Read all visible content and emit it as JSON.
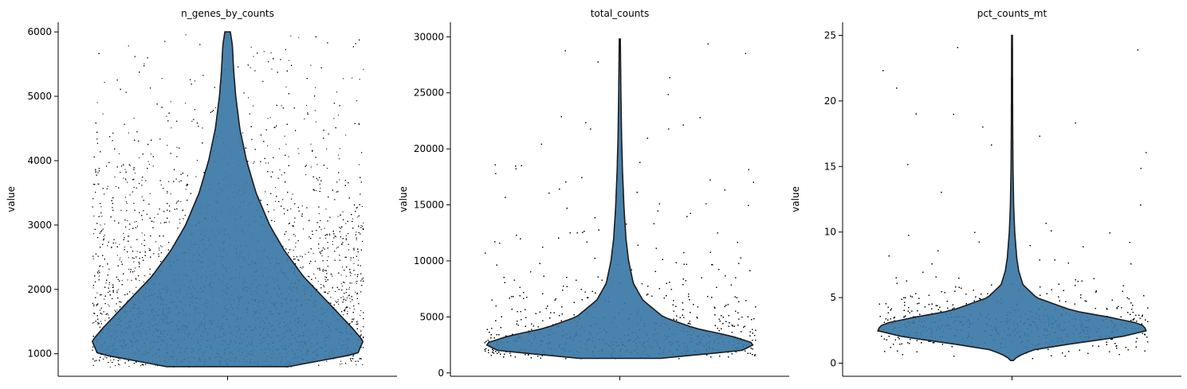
{
  "figure": {
    "background": "#ffffff",
    "violin_color": "#3a77a6",
    "violin_edge": "#1c1c1c",
    "point_color": "#000000",
    "spine_color": "#000000"
  },
  "chart_data": [
    {
      "type": "violin",
      "title": "n_genes_by_counts",
      "xlabel": "",
      "ylabel": "value",
      "ylim": [
        650,
        6150
      ],
      "yticks": [
        1000,
        2000,
        3000,
        4000,
        5000,
        6000
      ],
      "ytick_labels": [
        "1000",
        "2000",
        "3000",
        "4000",
        "5000",
        "6000"
      ],
      "min": 800,
      "max": 6000,
      "density_profile": [
        {
          "y": 800,
          "d": 0.45
        },
        {
          "y": 1000,
          "d": 0.96
        },
        {
          "y": 1200,
          "d": 1.0
        },
        {
          "y": 1400,
          "d": 0.92
        },
        {
          "y": 1800,
          "d": 0.74
        },
        {
          "y": 2200,
          "d": 0.56
        },
        {
          "y": 2600,
          "d": 0.42
        },
        {
          "y": 3000,
          "d": 0.31
        },
        {
          "y": 3500,
          "d": 0.21
        },
        {
          "y": 4000,
          "d": 0.14
        },
        {
          "y": 4500,
          "d": 0.09
        },
        {
          "y": 5000,
          "d": 0.06
        },
        {
          "y": 5400,
          "d": 0.045
        },
        {
          "y": 5800,
          "d": 0.035
        },
        {
          "y": 6000,
          "d": 0.02
        }
      ]
    },
    {
      "type": "violin",
      "title": "total_counts",
      "xlabel": "",
      "ylabel": "value",
      "ylim": [
        -300,
        31300
      ],
      "yticks": [
        0,
        5000,
        10000,
        15000,
        20000,
        25000,
        30000
      ],
      "ytick_labels": [
        "0",
        "5000",
        "10000",
        "15000",
        "20000",
        "25000",
        "30000"
      ],
      "min": 1300,
      "max": 29800,
      "density_profile": [
        {
          "y": 1300,
          "d": 0.3
        },
        {
          "y": 2000,
          "d": 0.9
        },
        {
          "y": 2600,
          "d": 1.0
        },
        {
          "y": 3300,
          "d": 0.82
        },
        {
          "y": 4000,
          "d": 0.55
        },
        {
          "y": 5000,
          "d": 0.32
        },
        {
          "y": 6500,
          "d": 0.17
        },
        {
          "y": 8000,
          "d": 0.1
        },
        {
          "y": 10000,
          "d": 0.065
        },
        {
          "y": 12000,
          "d": 0.045
        },
        {
          "y": 15000,
          "d": 0.03
        },
        {
          "y": 18000,
          "d": 0.02
        },
        {
          "y": 21000,
          "d": 0.013
        },
        {
          "y": 25000,
          "d": 0.008
        },
        {
          "y": 29800,
          "d": 0.004
        }
      ]
    },
    {
      "type": "violin",
      "title": "pct_counts_mt",
      "xlabel": "",
      "ylabel": "value",
      "ylim": [
        -1.0,
        26.0
      ],
      "yticks": [
        0,
        5,
        10,
        15,
        20,
        25
      ],
      "ytick_labels": [
        "0",
        "5",
        "10",
        "15",
        "20",
        "25"
      ],
      "min": 0.2,
      "max": 25.0,
      "density_profile": [
        {
          "y": 0.2,
          "d": 0.01
        },
        {
          "y": 0.5,
          "d": 0.04
        },
        {
          "y": 1.0,
          "d": 0.15
        },
        {
          "y": 1.5,
          "d": 0.45
        },
        {
          "y": 2.0,
          "d": 0.8
        },
        {
          "y": 2.5,
          "d": 1.0
        },
        {
          "y": 3.0,
          "d": 0.95
        },
        {
          "y": 3.5,
          "d": 0.72
        },
        {
          "y": 4.0,
          "d": 0.45
        },
        {
          "y": 5.0,
          "d": 0.18
        },
        {
          "y": 6.0,
          "d": 0.08
        },
        {
          "y": 7.0,
          "d": 0.05
        },
        {
          "y": 8.0,
          "d": 0.035
        },
        {
          "y": 10.0,
          "d": 0.02
        },
        {
          "y": 12.0,
          "d": 0.012
        },
        {
          "y": 15.0,
          "d": 0.007
        },
        {
          "y": 18.0,
          "d": 0.005
        },
        {
          "y": 21.0,
          "d": 0.004
        },
        {
          "y": 25.0,
          "d": 0.003
        }
      ]
    }
  ]
}
